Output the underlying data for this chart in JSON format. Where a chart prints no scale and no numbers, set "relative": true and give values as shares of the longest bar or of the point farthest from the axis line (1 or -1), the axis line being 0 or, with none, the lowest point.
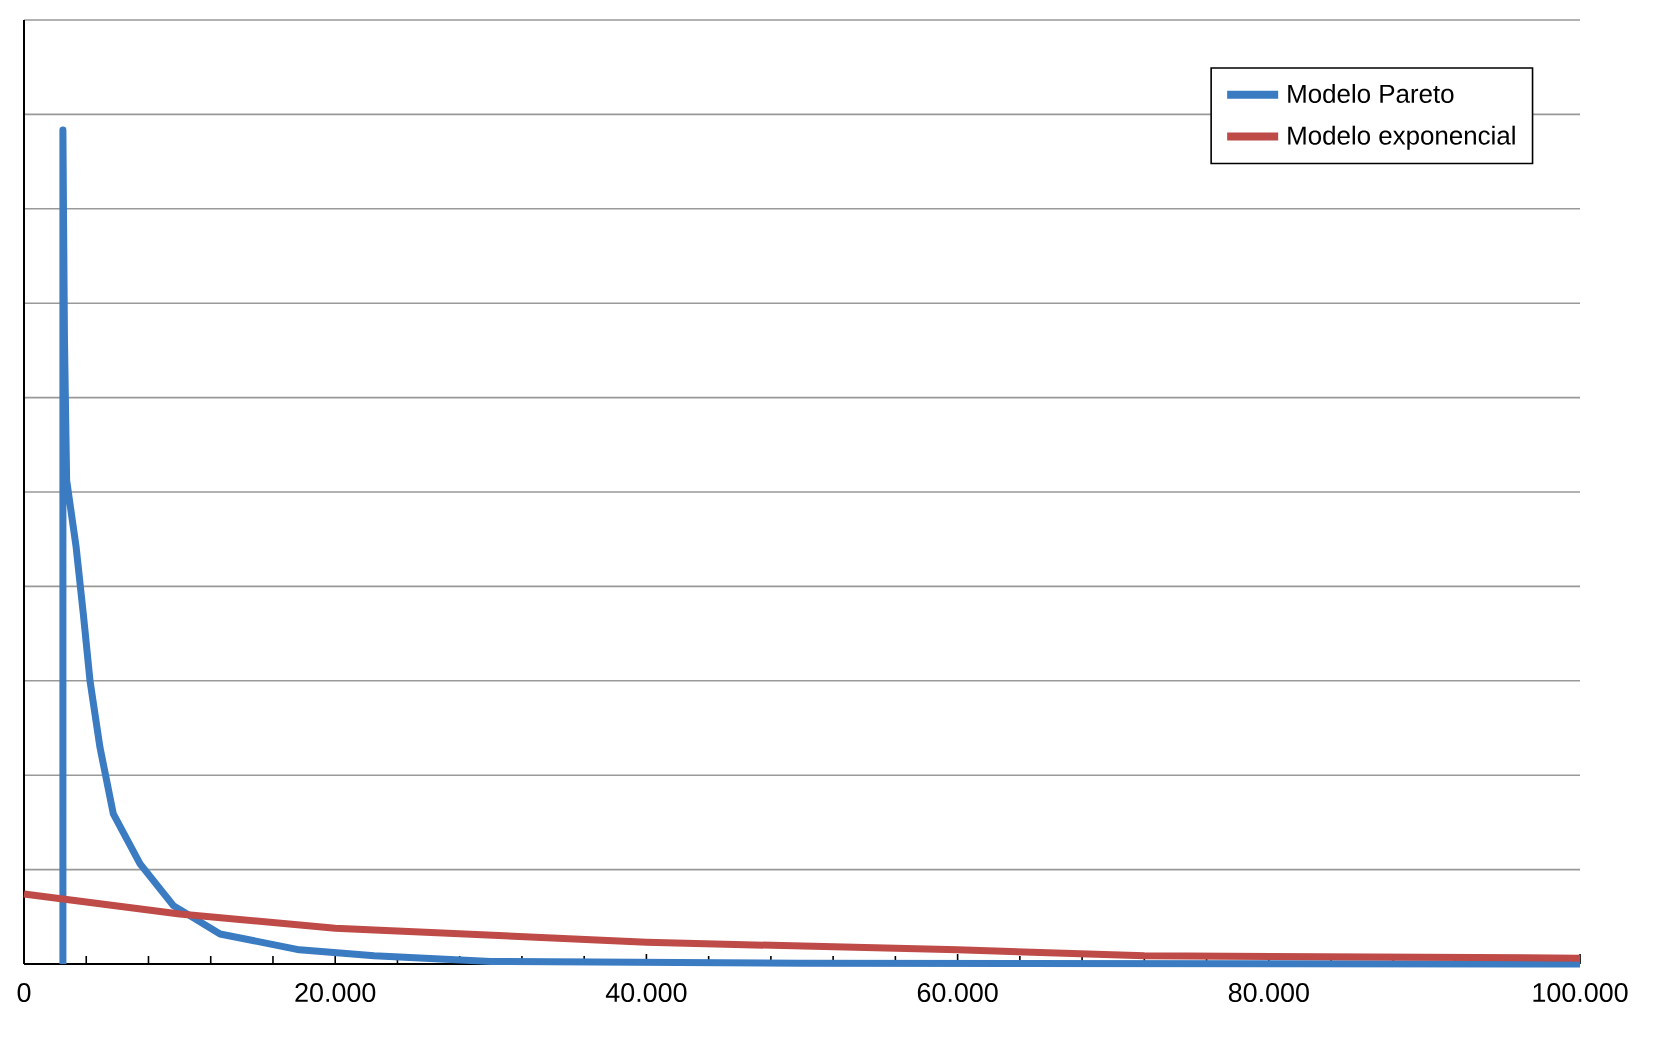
{
  "chart_data": {
    "type": "line",
    "relative": true,
    "xlim": [
      0,
      100000
    ],
    "xticks": [
      0,
      {
        "value": 20000,
        "label": "20.000"
      },
      {
        "value": 40000,
        "label": "40.000"
      },
      {
        "value": 60000,
        "label": "60.000"
      },
      {
        "value": 80000,
        "label": "80.000"
      },
      {
        "value": 100000,
        "label": "100.000"
      }
    ],
    "grid": "y",
    "legend": "top right",
    "marker": "none",
    "line_style": "solid",
    "series": [
      {
        "name": "Modelo Pareto",
        "color": "#3a7bc2",
        "x": [
          2500,
          2500,
          2600,
          2740,
          3350,
          3810,
          4240,
          4880,
          5740,
          7460,
          9600,
          12600,
          17700,
          22500,
          30000,
          50000,
          100000
        ],
        "values": [
          0,
          1.0,
          0.75,
          0.58,
          0.5,
          0.42,
          0.34,
          0.26,
          0.18,
          0.12,
          0.07,
          0.036,
          0.017,
          0.01,
          0.003,
          0.001,
          0
        ]
      },
      {
        "name": "Modelo exponencial",
        "color": "#be4b48",
        "x": [
          0,
          10000,
          20000,
          40000,
          60000,
          72000,
          100000
        ],
        "values": [
          0.084,
          0.06,
          0.043,
          0.026,
          0.017,
          0.01,
          0.007
        ]
      }
    ]
  }
}
